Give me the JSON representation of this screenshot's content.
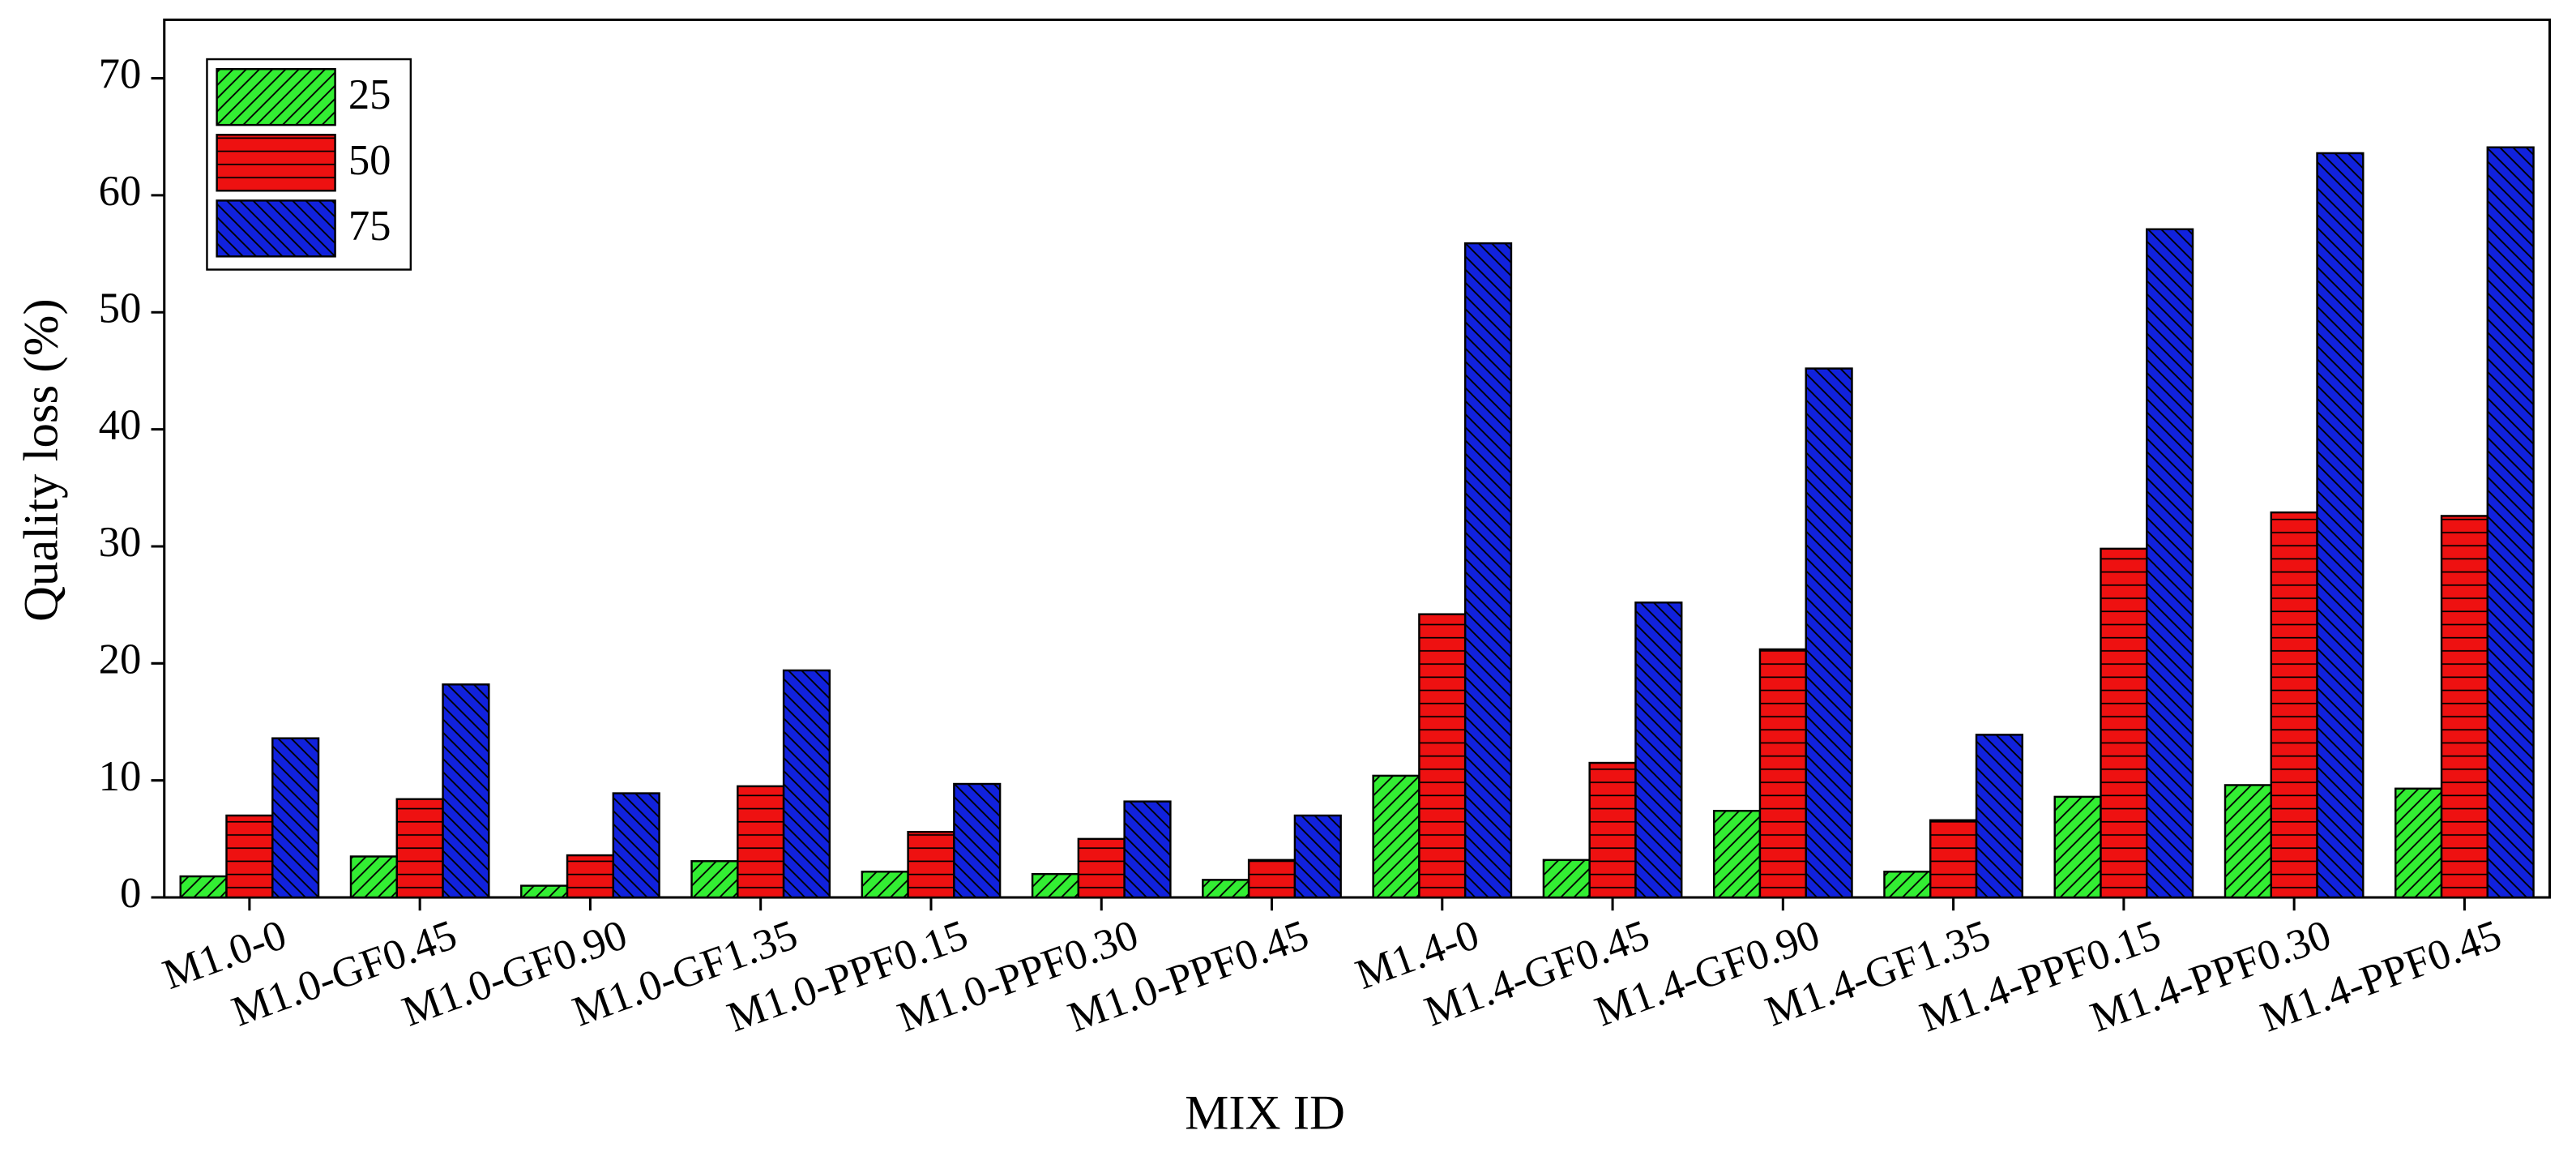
{
  "chart_data": {
    "type": "bar",
    "x_label": "MIX ID",
    "y_label": "Quality loss (%)",
    "categories": [
      "M1.0-0",
      "M1.0-GF0.45",
      "M1.0-GF0.90",
      "M1.0-GF1.35",
      "M1.0-PPF0.15",
      "M1.0-PPF0.30",
      "M1.0-PPF0.45",
      "M1.4-0",
      "M1.4-GF0.45",
      "M1.4-GF0.90",
      "M1.4-GF1.35",
      "M1.4-PPF0.15",
      "M1.4-PPF0.30",
      "M1.4-PPF0.45"
    ],
    "series": [
      {
        "name": "25",
        "color": "#33ee33",
        "values": [
          1.8,
          3.5,
          1.0,
          3.1,
          2.2,
          2.0,
          1.5,
          10.4,
          3.2,
          7.4,
          2.2,
          8.6,
          9.6,
          9.3
        ]
      },
      {
        "name": "50",
        "color": "#ee1111",
        "values": [
          7.0,
          8.4,
          3.6,
          9.5,
          5.6,
          5.0,
          3.2,
          24.2,
          11.5,
          21.2,
          6.6,
          29.8,
          32.9,
          32.6
        ]
      },
      {
        "name": "75",
        "color": "#1122dd",
        "values": [
          13.6,
          18.2,
          8.9,
          19.4,
          9.7,
          8.2,
          7.0,
          55.9,
          25.2,
          45.2,
          13.9,
          57.1,
          63.6,
          64.1
        ]
      }
    ],
    "ylim": [
      0,
      75
    ],
    "yticks": [
      0,
      10,
      20,
      30,
      40,
      50,
      60,
      70
    ],
    "legend": "upper left"
  }
}
